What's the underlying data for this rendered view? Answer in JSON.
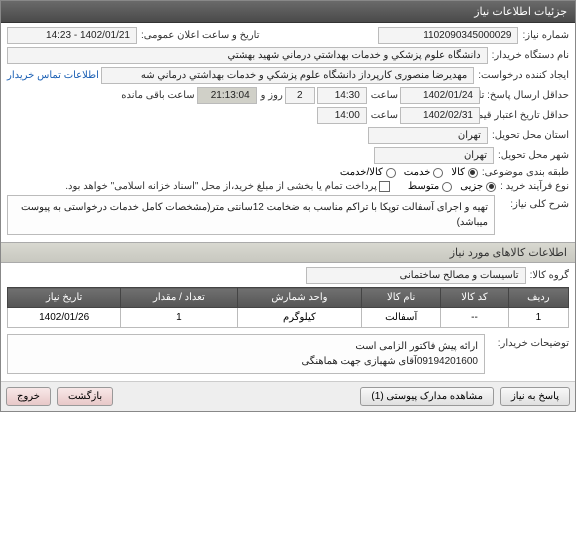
{
  "header": {
    "title": "جزئیات اطلاعات نیاز"
  },
  "fields": {
    "need_no_label": "شماره نیاز:",
    "need_no": "1102090345000029",
    "announce_label": "تاریخ و ساعت اعلان عمومی:",
    "announce": "1402/01/21 - 14:23",
    "buyer_label": "نام دستگاه خریدار:",
    "buyer": "دانشگاه علوم پزشکي و خدمات بهداشتي درماني شهيد بهشتي",
    "creator_label": "ایجاد کننده درخواست:",
    "creator": "مهدیرضا منصوری کارپرداز دانشگاه علوم پزشکي و خدمات بهداشتي درماني شه",
    "contact_link": "اطلاعات تماس خریدار",
    "deadline_label": "حداقل ارسال پاسخ: تا تاریخ:",
    "deadline_date": "1402/01/24",
    "time_label": "ساعت",
    "deadline_time": "14:30",
    "days_label": "روز و",
    "days": "2",
    "remain_time": "21:13:04",
    "remain_label": "ساعت باقی مانده",
    "valid_label": "حداقل تاریخ اعتبار قیمت: تا تاریخ:",
    "valid_date": "1402/02/31",
    "valid_time": "14:00",
    "location_label": "استان محل تحویل:",
    "location": "تهران",
    "city_label": "شهر محل تحویل:",
    "city": "تهران",
    "category_label": "طبقه بندی موضوعی:",
    "cat_goods": "کالا",
    "cat_service": "خدمت",
    "cat_both": "کالا/خدمت",
    "buy_type_label": "نوع فرآیند خرید :",
    "bt_partial": "جزیی",
    "bt_medium": "متوسط",
    "pay_note": "پرداخت تمام یا بخشی از مبلغ خرید،از محل \"اسناد خزانه اسلامی\" خواهد بود.",
    "desc_label": "شرح کلی نیاز:",
    "desc": "تهیه و اجرای آسفالت توپکا با تراکم مناسب به ضخامت 12سانتی متر(مشخصات کامل خدمات درخواستی به پیوست میباشد)",
    "buyer_notes_label": "توضیحات خریدار:",
    "buyer_notes": "ارائه پیش فاکتور الزامی است\n09194201600آقای شهبازی جهت هماهنگی"
  },
  "goods_section": {
    "title": "اطلاعات کالاهای مورد نیاز"
  },
  "goods_group_label": "گروه کالا:",
  "goods_group": "تاسیسات و مصالح ساختمانی",
  "table": {
    "headers": [
      "ردیف",
      "کد کالا",
      "نام کالا",
      "واحد شمارش",
      "تعداد / مقدار",
      "تاریخ نیاز"
    ],
    "rows": [
      [
        "1",
        "--",
        "آسفالت",
        "کیلوگرم",
        "1",
        "1402/01/26"
      ]
    ]
  },
  "buttons": {
    "reply": "پاسخ به نیاز",
    "attach": "مشاهده مدارک پیوستی (1)",
    "back": "بازگشت",
    "exit": "خروج"
  },
  "colors": {
    "header_bg": "#5a5a5a",
    "section_bg": "#d0d0c8",
    "link": "#1a5fb4"
  }
}
